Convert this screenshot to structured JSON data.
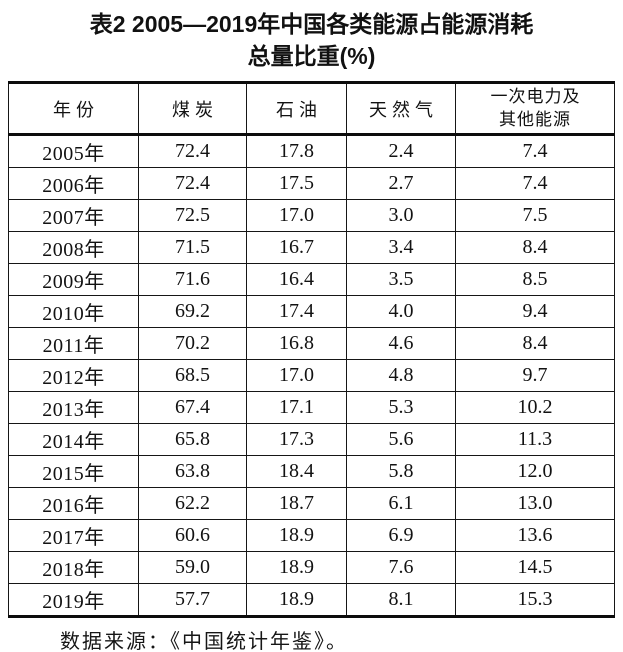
{
  "title": {
    "line1": "表2 2005—2019年中国各类能源占能源消耗",
    "line2": "总量比重(%)"
  },
  "table": {
    "columns": [
      "年份",
      "煤炭",
      "石油",
      "天然气",
      "一次电力及\n其他能源"
    ],
    "rows": [
      [
        "2005年",
        "72.4",
        "17.8",
        "2.4",
        "7.4"
      ],
      [
        "2006年",
        "72.4",
        "17.5",
        "2.7",
        "7.4"
      ],
      [
        "2007年",
        "72.5",
        "17.0",
        "3.0",
        "7.5"
      ],
      [
        "2008年",
        "71.5",
        "16.7",
        "3.4",
        "8.4"
      ],
      [
        "2009年",
        "71.6",
        "16.4",
        "3.5",
        "8.5"
      ],
      [
        "2010年",
        "69.2",
        "17.4",
        "4.0",
        "9.4"
      ],
      [
        "2011年",
        "70.2",
        "16.8",
        "4.6",
        "8.4"
      ],
      [
        "2012年",
        "68.5",
        "17.0",
        "4.8",
        "9.7"
      ],
      [
        "2013年",
        "67.4",
        "17.1",
        "5.3",
        "10.2"
      ],
      [
        "2014年",
        "65.8",
        "17.3",
        "5.6",
        "11.3"
      ],
      [
        "2015年",
        "63.8",
        "18.4",
        "5.8",
        "12.0"
      ],
      [
        "2016年",
        "62.2",
        "18.7",
        "6.1",
        "13.0"
      ],
      [
        "2017年",
        "60.6",
        "18.9",
        "6.9",
        "13.6"
      ],
      [
        "2018年",
        "59.0",
        "18.9",
        "7.6",
        "14.5"
      ],
      [
        "2019年",
        "57.7",
        "18.9",
        "8.1",
        "15.3"
      ]
    ]
  },
  "footer": {
    "source_note": "数据来源：《中国统计年鉴》。"
  },
  "colors": {
    "background": "#ffffff",
    "text": "#121212",
    "border_thin": "#161616",
    "border_thick": "#0c0c0c"
  },
  "chart_data": {
    "type": "table",
    "title": "表2 2005—2019年中国各类能源占能源消耗总量比重(%)",
    "unit": "%",
    "categories": [
      "2005年",
      "2006年",
      "2007年",
      "2008年",
      "2009年",
      "2010年",
      "2011年",
      "2012年",
      "2013年",
      "2014年",
      "2015年",
      "2016年",
      "2017年",
      "2018年",
      "2019年"
    ],
    "series": [
      {
        "name": "煤炭",
        "values": [
          72.4,
          72.4,
          72.5,
          71.5,
          71.6,
          69.2,
          70.2,
          68.5,
          67.4,
          65.8,
          63.8,
          62.2,
          60.6,
          59.0,
          57.7
        ]
      },
      {
        "name": "石油",
        "values": [
          17.8,
          17.5,
          17.0,
          16.7,
          16.4,
          17.4,
          16.8,
          17.0,
          17.1,
          17.3,
          18.4,
          18.7,
          18.9,
          18.9,
          18.9
        ]
      },
      {
        "name": "天然气",
        "values": [
          2.4,
          2.7,
          3.0,
          3.4,
          3.5,
          4.0,
          4.6,
          4.8,
          5.3,
          5.6,
          5.8,
          6.1,
          6.9,
          7.6,
          8.1
        ]
      },
      {
        "name": "一次电力及其他能源",
        "values": [
          7.4,
          7.4,
          7.5,
          8.4,
          8.5,
          9.4,
          8.4,
          9.7,
          10.2,
          11.3,
          12.0,
          13.0,
          13.6,
          14.5,
          15.3
        ]
      }
    ],
    "source": "数据来源：《中国统计年鉴》。"
  }
}
